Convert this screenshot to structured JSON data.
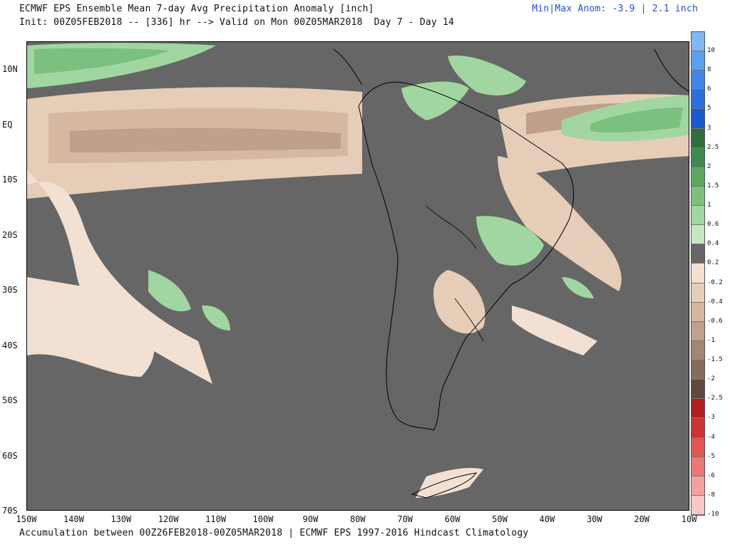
{
  "header": {
    "title_line1": "ECMWF EPS Ensemble Mean 7-day Avg Precipitation Anomaly [inch]",
    "title_line2": "Init: 00Z05FEB2018 -- [336] hr --> Valid on Mon 00Z05MAR2018  Day 7 - Day 14",
    "minmax": "Min|Max Anom: -3.9 | 2.1 inch"
  },
  "footer": "Accumulation between 00Z26FEB2018-00Z05MAR2018 | ECMWF EPS 1997-2016 Hindcast Climatology",
  "lat_labels": [
    "10N",
    "EQ",
    "10S",
    "20S",
    "30S",
    "40S",
    "50S",
    "60S",
    "70S"
  ],
  "lon_labels": [
    "150W",
    "140W",
    "130W",
    "120W",
    "110W",
    "100W",
    "90W",
    "80W",
    "70W",
    "60W",
    "50W",
    "40W",
    "30W",
    "20W",
    "10W"
  ],
  "colorbar": {
    "labels": [
      "10",
      "8",
      "6",
      "5",
      "3",
      "2.5",
      "2",
      "1.5",
      "1",
      "0.6",
      "0.4",
      "0.2",
      "-0.2",
      "-0.4",
      "-0.6",
      "-1",
      "-1.5",
      "-2",
      "-2.5",
      "-3",
      "-4",
      "-5",
      "-6",
      "-8",
      "-10"
    ],
    "colors": [
      "#7fb8f5",
      "#5aa0ee",
      "#3f86e6",
      "#2a6fdc",
      "#1a5ad0",
      "#2f6e3c",
      "#3f8a4c",
      "#5aa862",
      "#7cc080",
      "#a2d6a0",
      "#c6e8c0",
      "#666666",
      "#f2e0d2",
      "#e6cdb8",
      "#d6b8a0",
      "#bfa08a",
      "#a38672",
      "#856c5c",
      "#5e4b3e",
      "#b22020",
      "#cc3333",
      "#de5656",
      "#eb7878",
      "#f3a0a0",
      "#f9c8c8"
    ]
  }
}
